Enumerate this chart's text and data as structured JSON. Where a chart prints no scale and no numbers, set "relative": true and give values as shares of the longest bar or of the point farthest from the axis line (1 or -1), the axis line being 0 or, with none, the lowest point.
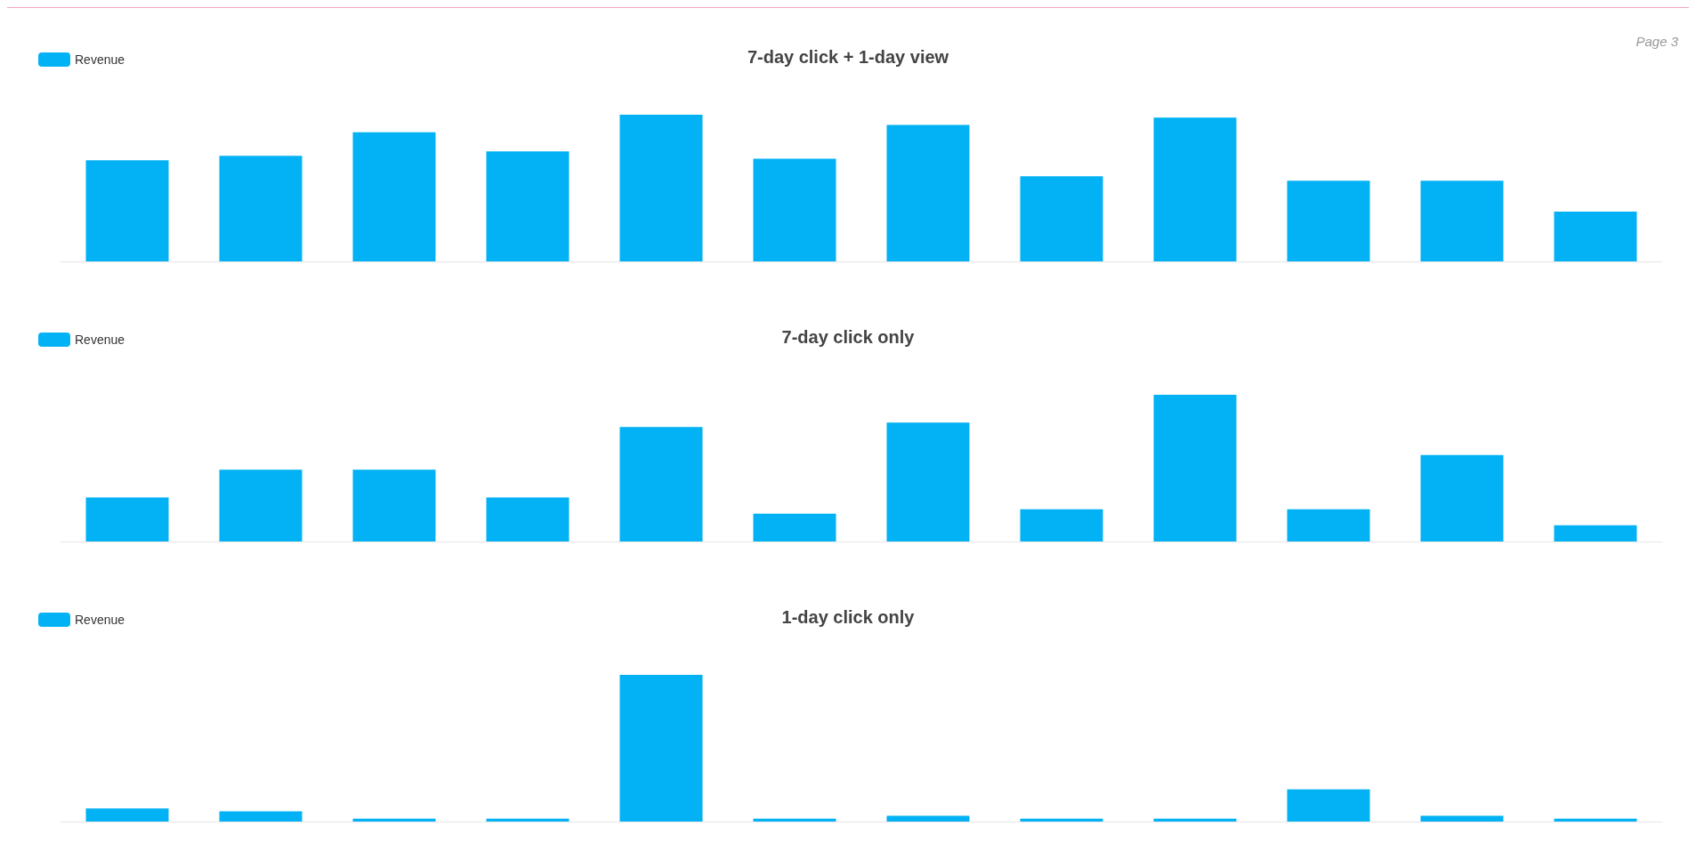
{
  "chart_data": [
    {
      "type": "bar",
      "title": "7-day click + 1-day view",
      "categories": [
        null,
        null,
        null,
        null,
        null,
        null,
        null,
        null,
        null,
        null,
        null,
        null
      ],
      "relative": true,
      "legend": "top left",
      "annotations": [
        "Page 3"
      ],
      "series": [
        {
          "name": "Revenue",
          "color": "#03b2f5",
          "values": [
            0.69,
            0.72,
            0.88,
            0.75,
            1,
            0.7,
            0.93,
            0.58,
            0.98,
            0.55,
            0.55,
            0.34
          ]
        }
      ]
    },
    {
      "type": "bar",
      "title": "7-day click only",
      "categories": [
        null,
        null,
        null,
        null,
        null,
        null,
        null,
        null,
        null,
        null,
        null,
        null
      ],
      "relative": true,
      "legend": "top left",
      "series": [
        {
          "name": "Revenue",
          "color": "#03b2f5",
          "values": [
            0.3,
            0.49,
            0.49,
            0.3,
            0.78,
            0.19,
            0.81,
            0.22,
            1,
            0.22,
            0.59,
            0.11
          ]
        }
      ]
    },
    {
      "type": "bar",
      "title": "1-day click only",
      "categories": [
        null,
        null,
        null,
        null,
        null,
        null,
        null,
        null,
        null,
        null,
        null,
        null
      ],
      "relative": true,
      "legend": "top left",
      "series": [
        {
          "name": "Revenue",
          "color": "#03b2f5",
          "values": [
            0.09,
            0.07,
            0.02,
            0.02,
            1,
            0.02,
            0.04,
            0.02,
            0.02,
            0.22,
            0.04,
            0.02
          ]
        }
      ]
    }
  ]
}
